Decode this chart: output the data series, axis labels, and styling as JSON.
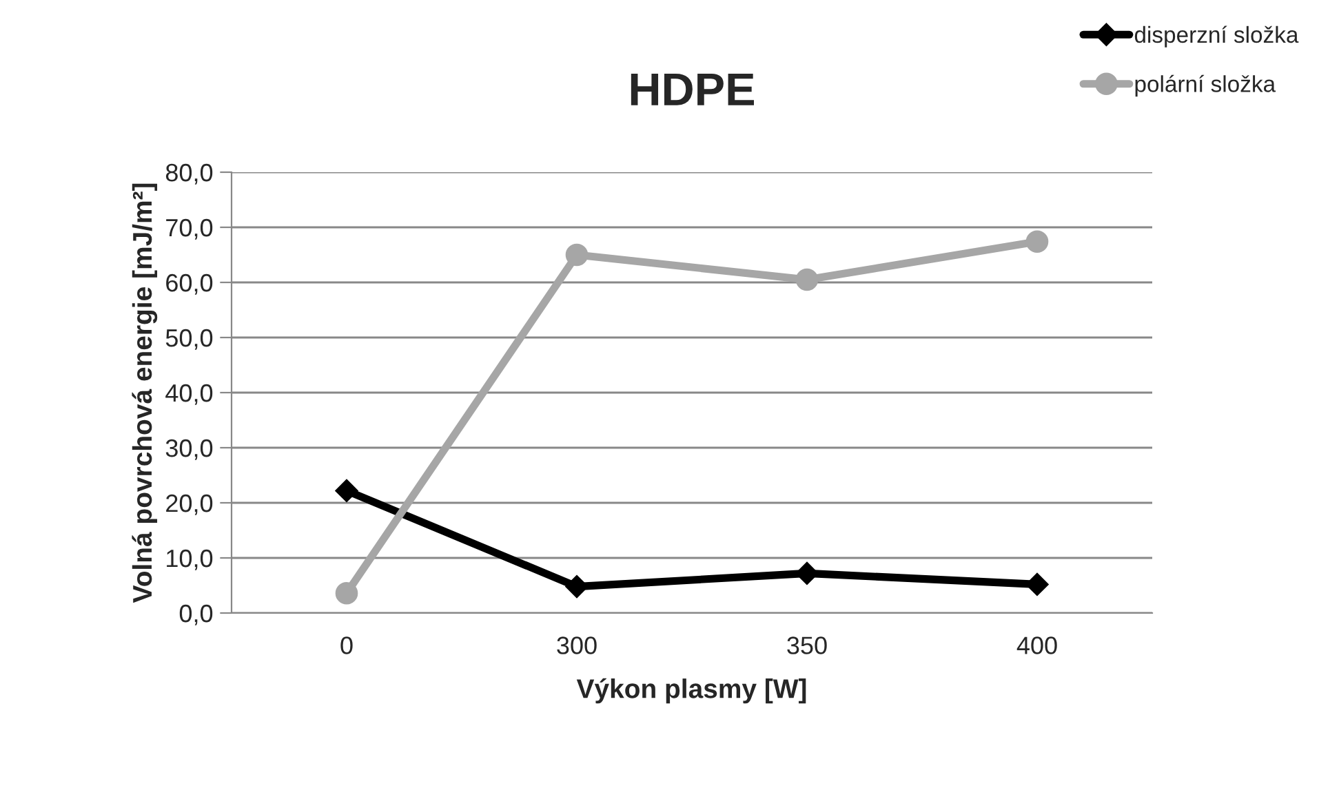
{
  "chart_data": {
    "type": "line",
    "title": "HDPE",
    "xlabel": "Výkon plasmy [W]",
    "ylabel": "Volná povrchová energie [mJ/m²]",
    "categories": [
      "0",
      "300",
      "350",
      "400"
    ],
    "series": [
      {
        "name": "disperzní složka",
        "color": "#000000",
        "marker": "diamond",
        "values": [
          22.2,
          4.8,
          7.2,
          5.2
        ]
      },
      {
        "name": "polární složka",
        "color": "#a6a6a6",
        "marker": "circle",
        "values": [
          3.6,
          65.0,
          60.5,
          67.4
        ]
      }
    ],
    "ylim": [
      0,
      80
    ],
    "yticks": [
      {
        "value": 0,
        "label": "0,0"
      },
      {
        "value": 10,
        "label": "10,0"
      },
      {
        "value": 20,
        "label": "20,0"
      },
      {
        "value": 30,
        "label": "30,0"
      },
      {
        "value": 40,
        "label": "40,0"
      },
      {
        "value": 50,
        "label": "50,0"
      },
      {
        "value": 60,
        "label": "60,0"
      },
      {
        "value": 70,
        "label": "70,0"
      },
      {
        "value": 80,
        "label": "80,0"
      }
    ],
    "grid": "y",
    "legend": "top right",
    "line_style": "solid"
  }
}
